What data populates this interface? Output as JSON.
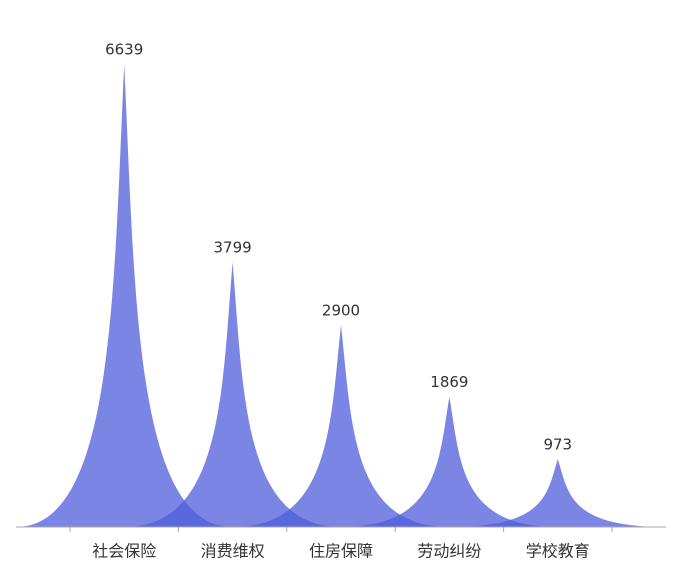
{
  "chart_data": {
    "type": "peak",
    "categories": [
      "社会保险",
      "消费维权",
      "住房保障",
      "劳动纠纷",
      "学校教育"
    ],
    "values": [
      6639,
      3799,
      2900,
      1869,
      973
    ],
    "color": "#4f5ddb"
  }
}
